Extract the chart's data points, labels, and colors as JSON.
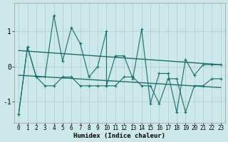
{
  "xlabel": "Humidex (Indice chaleur)",
  "bg_color": "#cce8e8",
  "grid_color": "#b0d0d0",
  "line_color": "#1a6b6b",
  "xlim": [
    -0.5,
    23.5
  ],
  "ylim": [
    -1.6,
    1.8
  ],
  "yticks": [
    -1,
    0,
    1
  ],
  "xticks": [
    0,
    1,
    2,
    3,
    4,
    5,
    6,
    7,
    8,
    9,
    10,
    11,
    12,
    13,
    14,
    15,
    16,
    17,
    18,
    19,
    20,
    21,
    22,
    23
  ],
  "series1_x": [
    0,
    1,
    2,
    3,
    4,
    5,
    6,
    7,
    8,
    9,
    10,
    10,
    11,
    12,
    13,
    14,
    15,
    16,
    17,
    18,
    19,
    20,
    21,
    22,
    23
  ],
  "series1_y": [
    -1.35,
    0.55,
    -0.3,
    -0.3,
    1.45,
    0.15,
    1.1,
    0.65,
    -0.3,
    0.0,
    1.0,
    -0.55,
    0.3,
    0.3,
    -0.35,
    1.05,
    -1.05,
    -0.2,
    -0.2,
    -1.3,
    0.2,
    -0.25,
    0.05,
    0.05,
    0.05
  ],
  "series2_x": [
    0,
    1,
    2,
    3,
    4,
    5,
    6,
    7,
    8,
    9,
    10,
    11,
    12,
    13,
    14,
    15,
    16,
    17,
    18,
    19,
    20,
    21,
    22,
    23
  ],
  "series2_y": [
    -1.35,
    0.55,
    -0.3,
    -0.55,
    -0.55,
    -0.3,
    -0.3,
    -0.55,
    -0.55,
    -0.55,
    -0.55,
    -0.55,
    -0.3,
    -0.3,
    -0.55,
    -0.55,
    -1.05,
    -0.35,
    -0.35,
    -1.3,
    -0.55,
    -0.55,
    -0.35,
    -0.35
  ],
  "trend1_x": [
    0,
    23
  ],
  "trend1_y": [
    0.45,
    0.05
  ],
  "trend2_x": [
    0,
    23
  ],
  "trend2_y": [
    -0.25,
    -0.6
  ]
}
